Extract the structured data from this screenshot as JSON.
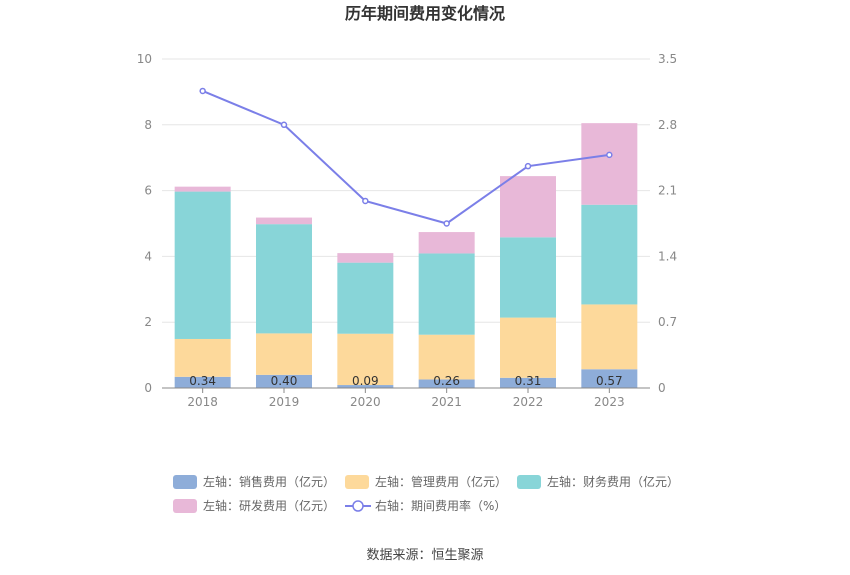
{
  "chart_data": {
    "type": "bar",
    "title": "历年期间费用变化情况",
    "categories": [
      "2018",
      "2019",
      "2020",
      "2021",
      "2022",
      "2023"
    ],
    "stacked": true,
    "series": [
      {
        "name": "左轴：销售费用（亿元）",
        "axis": "left",
        "color": "#8eadd9",
        "values": [
          0.34,
          0.4,
          0.09,
          0.26,
          0.31,
          0.57
        ],
        "labels": [
          "0.34",
          "0.40",
          "0.09",
          "0.26",
          "0.31",
          "0.57"
        ]
      },
      {
        "name": "左轴：管理费用（亿元）",
        "axis": "left",
        "color": "#fdd99b",
        "values": [
          1.15,
          1.26,
          1.56,
          1.36,
          1.83,
          1.97
        ]
      },
      {
        "name": "左轴：财务费用（亿元）",
        "axis": "left",
        "color": "#88d5d8",
        "values": [
          4.48,
          3.32,
          2.16,
          2.47,
          2.44,
          3.03
        ]
      },
      {
        "name": "左轴：研发费用（亿元）",
        "axis": "left",
        "color": "#e8b8d8",
        "values": [
          0.15,
          0.2,
          0.29,
          0.65,
          1.86,
          2.48
        ]
      },
      {
        "name": "右轴：期间费用率（%）",
        "axis": "right",
        "type": "line",
        "color": "#7b7fe8",
        "values": [
          3.16,
          2.8,
          1.99,
          1.75,
          2.36,
          2.48
        ]
      }
    ],
    "y_left": {
      "min": 0,
      "max": 10,
      "ticks": [
        "0",
        "2",
        "4",
        "6",
        "8",
        "10"
      ]
    },
    "y_right": {
      "min": 0,
      "max": 3.5,
      "ticks": [
        "0",
        "0.7",
        "1.4",
        "2.1",
        "2.8",
        "3.5"
      ]
    },
    "grid": true,
    "legend_position": "bottom"
  },
  "footer": {
    "source": "数据来源：恒生聚源"
  }
}
